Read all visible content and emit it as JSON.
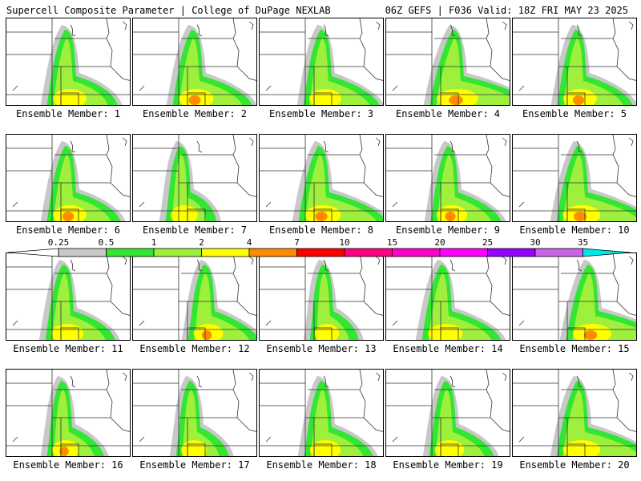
{
  "header": {
    "title": "Supercell Composite Parameter | College of DuPage NEXLAB",
    "run_info": "06Z GEFS | F036 Valid: 18Z FRI MAY 23 2025"
  },
  "members": [
    {
      "label": "Ensemble Member: 1"
    },
    {
      "label": "Ensemble Member: 2"
    },
    {
      "label": "Ensemble Member: 3"
    },
    {
      "label": "Ensemble Member: 4"
    },
    {
      "label": "Ensemble Member: 5"
    },
    {
      "label": "Ensemble Member: 6"
    },
    {
      "label": "Ensemble Member: 7"
    },
    {
      "label": "Ensemble Member: 8"
    },
    {
      "label": "Ensemble Member: 9"
    },
    {
      "label": "Ensemble Member: 10"
    },
    {
      "label": "Ensemble Member: 11"
    },
    {
      "label": "Ensemble Member: 12"
    },
    {
      "label": "Ensemble Member: 13"
    },
    {
      "label": "Ensemble Member: 14"
    },
    {
      "label": "Ensemble Member: 15"
    },
    {
      "label": "Ensemble Member: 16"
    },
    {
      "label": "Ensemble Member: 17"
    },
    {
      "label": "Ensemble Member: 18"
    },
    {
      "label": "Ensemble Member: 19"
    },
    {
      "label": "Ensemble Member: 20"
    }
  ],
  "colorbar": {
    "labels": [
      "0.25",
      "0.5",
      "1",
      "2",
      "4",
      "7",
      "10",
      "15",
      "20",
      "25",
      "30",
      "35"
    ],
    "colors": [
      "#c8c8c8",
      "#32e632",
      "#9ef03c",
      "#ffff00",
      "#ff8c00",
      "#ff0000",
      "#ff0080",
      "#ff00c8",
      "#ff00ff",
      "#9600ff",
      "#c864e6",
      "#00e6e6"
    ]
  }
}
